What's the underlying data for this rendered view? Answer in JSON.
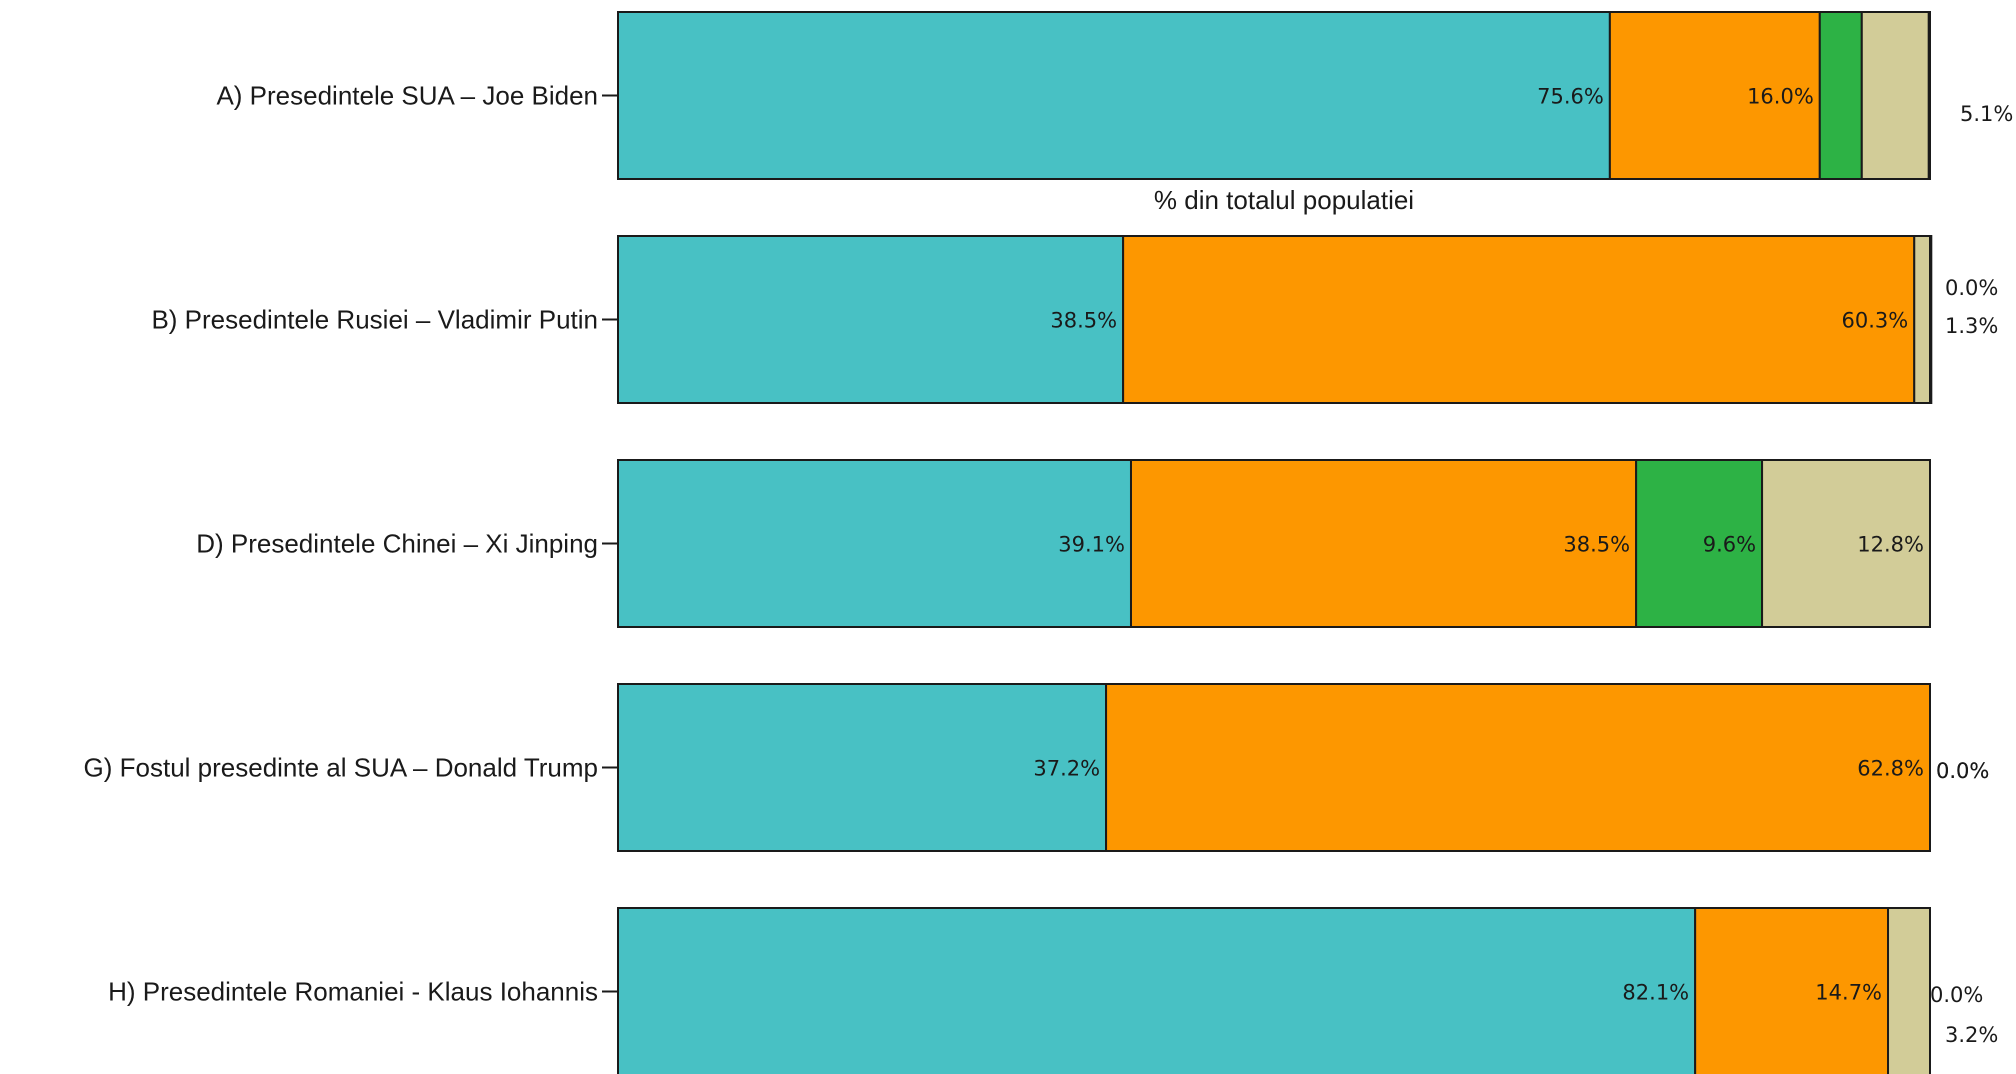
{
  "chart_data": {
    "type": "bar",
    "orientation": "horizontal",
    "stacked": true,
    "axis_title": "% din totalul populatiei",
    "xlim": [
      0,
      100
    ],
    "grid": false,
    "legend": "none",
    "segment_colors": [
      "#48c1c4",
      "#fd9700",
      "#2db245",
      "#d2cc98"
    ],
    "categories": [
      "A) Presedintele SUA – Joe Biden",
      "B) Presedintele Rusiei – Vladimir Putin",
      "D) Presedintele Chinei – Xi Jinping",
      "G) Fostul presedinte al SUA – Donald Trump",
      "H) Presedintele Romaniei - Klaus Iohannis"
    ],
    "values": [
      [
        75.6,
        16.0,
        3.2,
        5.1
      ],
      [
        38.5,
        60.3,
        0.0,
        1.3
      ],
      [
        39.1,
        38.5,
        9.6,
        12.8
      ],
      [
        37.2,
        62.8,
        0.0,
        0.0
      ],
      [
        82.1,
        14.7,
        0.0,
        3.2
      ]
    ],
    "labels": [
      [
        "75.6%",
        "16.0%",
        "3.2%",
        "5.1%"
      ],
      [
        "38.5%",
        "60.3%",
        "0.0%",
        "1.3%"
      ],
      [
        "39.1%",
        "38.5%",
        "9.6%",
        "12.8%"
      ],
      [
        "37.2%",
        "62.8%",
        "0.0%",
        "0.0%"
      ],
      [
        "82.1%",
        "14.7%",
        "0.0%",
        "3.2%"
      ]
    ]
  }
}
